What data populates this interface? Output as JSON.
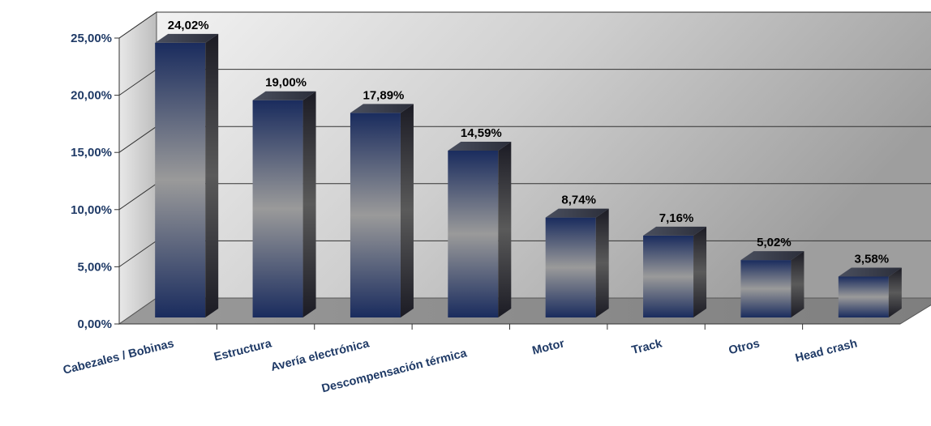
{
  "chart_data": {
    "type": "bar",
    "categories": [
      "Cabezales / Bobinas",
      "Estructura",
      "Avería electrónica",
      "Descompensación térmica",
      "Motor",
      "Track",
      "Otros",
      "Head crash"
    ],
    "values": [
      24.02,
      19.0,
      17.89,
      14.59,
      8.74,
      7.16,
      5.02,
      3.58
    ],
    "data_labels": [
      "24,02%",
      "19,00%",
      "17,89%",
      "14,59%",
      "8,74%",
      "7,16%",
      "5,02%",
      "3,58%"
    ],
    "title": "",
    "xlabel": "",
    "ylabel": "",
    "ylim": [
      0,
      25
    ],
    "yticks": [
      0,
      5,
      10,
      15,
      20,
      25
    ],
    "ytick_labels": [
      "0,00%",
      "5,00%",
      "10,00%",
      "15,00%",
      "20,00%",
      "25,00%"
    ],
    "grid": true,
    "legend": "none",
    "style": "3d-column",
    "colors": {
      "bar_dark": "#1a2c5e",
      "bar_mid": "#9a9a9a",
      "tick_text": "#1f3a66",
      "floor": "#8c8c8c"
    }
  }
}
